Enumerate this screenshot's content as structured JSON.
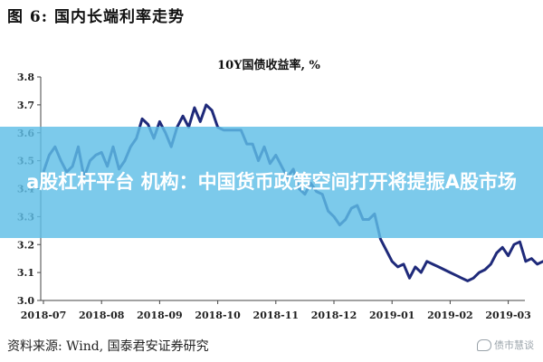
{
  "figure_title": "图 6:  国内长端利率走势",
  "source": "资料来源:  Wind,  国泰君安证券研究",
  "watermark": "债市慧谈",
  "banner": {
    "text": "a股杠杆平台 机构：中国货币政策空间打开将提振A股市场"
  },
  "colors": {
    "line": "#1f2a7a",
    "banner": "#5fbee6",
    "axis": "#444444"
  },
  "chart_data": {
    "type": "line",
    "title": "10Y国债收益率,  %",
    "xlabel": "",
    "ylabel": "",
    "x_ticks": [
      "2018-07",
      "2018-08",
      "2018-09",
      "2018-10",
      "2018-11",
      "2018-12",
      "2019-01",
      "2019-02",
      "2019-03"
    ],
    "xlim": [
      0,
      8.85
    ],
    "ylim": [
      3.0,
      3.8
    ],
    "y_ticks": [
      3.0,
      3.1,
      3.2,
      3.3,
      3.4,
      3.5,
      3.6,
      3.7,
      3.8
    ],
    "grid": false,
    "series": [
      {
        "x": [
          0,
          0.1,
          0.2,
          0.3,
          0.4,
          0.5,
          0.6,
          0.7,
          0.8,
          0.9,
          1.0,
          1.1,
          1.2,
          1.3,
          1.4,
          1.5,
          1.6,
          1.7,
          1.8,
          1.9,
          2.0,
          2.1,
          2.2,
          2.3,
          2.4,
          2.5,
          2.6,
          2.7,
          2.8,
          2.9,
          3.0,
          3.1,
          3.2,
          3.3,
          3.4,
          3.5,
          3.6,
          3.7,
          3.8,
          3.9,
          4.0,
          4.1,
          4.2,
          4.3,
          4.4,
          4.5,
          4.6,
          4.7,
          4.8,
          4.9,
          5.0,
          5.1,
          5.2,
          5.3,
          5.4,
          5.5,
          5.6,
          5.7,
          5.8,
          5.9,
          6.0,
          6.1,
          6.2,
          6.3,
          6.4,
          6.5,
          6.6,
          6.7,
          6.8,
          6.9,
          7.0,
          7.1,
          7.2,
          7.3,
          7.4,
          7.5,
          7.6,
          7.7,
          7.8,
          7.9,
          8.0,
          8.1,
          8.2,
          8.3,
          8.4,
          8.5,
          8.6,
          8.7,
          8.8
        ],
        "values": [
          3.46,
          3.52,
          3.55,
          3.5,
          3.46,
          3.48,
          3.55,
          3.44,
          3.5,
          3.52,
          3.53,
          3.48,
          3.55,
          3.47,
          3.5,
          3.55,
          3.58,
          3.65,
          3.63,
          3.58,
          3.64,
          3.6,
          3.55,
          3.62,
          3.66,
          3.62,
          3.69,
          3.64,
          3.7,
          3.68,
          3.62,
          3.61,
          3.61,
          3.61,
          3.61,
          3.56,
          3.56,
          3.5,
          3.55,
          3.49,
          3.52,
          3.48,
          3.44,
          3.47,
          3.4,
          3.38,
          3.42,
          3.39,
          3.38,
          3.32,
          3.3,
          3.27,
          3.29,
          3.33,
          3.34,
          3.29,
          3.29,
          3.31,
          3.22,
          3.18,
          3.14,
          3.12,
          3.13,
          3.08,
          3.12,
          3.1,
          3.14,
          3.13,
          3.12,
          3.11,
          3.1,
          3.09,
          3.08,
          3.07,
          3.08,
          3.1,
          3.11,
          3.13,
          3.17,
          3.19,
          3.16,
          3.2,
          3.21,
          3.14,
          3.15,
          3.13,
          3.14,
          3.14,
          3.14
        ]
      }
    ]
  }
}
